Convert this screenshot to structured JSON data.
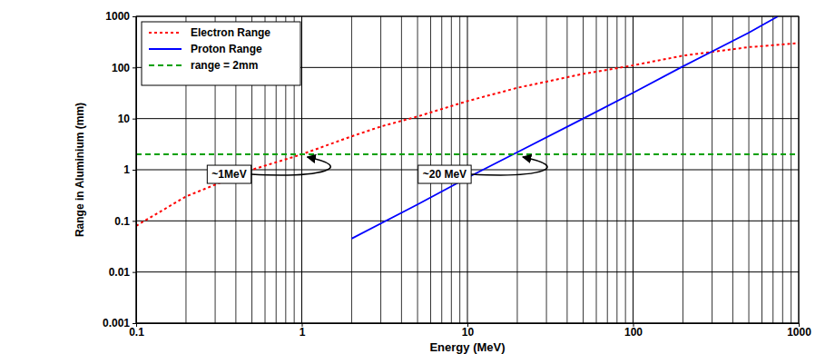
{
  "chart_data": {
    "type": "line",
    "log": true,
    "grid": true,
    "legend": "top-left",
    "x_label": "Energy (MeV)",
    "y_label": "Range in Aluminium (mm)",
    "xlim": [
      0.1,
      1000
    ],
    "xticks": [
      0.1,
      1,
      10,
      100,
      1000
    ],
    "ylim": [
      0.001,
      1000
    ],
    "yticks": [
      0.001,
      0.01,
      0.1,
      1,
      10,
      100,
      1000
    ],
    "series": [
      {
        "name": "Electron Range",
        "color": "#ff0000",
        "line_style": "dotted",
        "x": [
          0.1,
          0.2,
          0.5,
          1,
          2,
          3,
          5,
          10,
          20,
          50,
          100,
          200,
          500,
          1000
        ],
        "values": [
          0.08,
          0.3,
          1,
          2,
          4.5,
          7,
          11,
          22,
          40,
          75,
          110,
          170,
          250,
          300
        ]
      },
      {
        "name": "Proton Range",
        "color": "#0000ff",
        "line_style": "solid",
        "x": [
          2,
          5,
          10,
          20,
          50,
          100,
          200,
          500,
          750
        ],
        "values": [
          0.045,
          0.21,
          0.7,
          2.2,
          10,
          32,
          105,
          480,
          1000
        ]
      },
      {
        "name": "range = 2mm",
        "color": "#00a000",
        "line_style": "dashed",
        "x": [
          0.1,
          1000
        ],
        "values": [
          2,
          2
        ]
      }
    ],
    "annotations": [
      {
        "text": "~1MeV",
        "x": 1,
        "y": 2
      },
      {
        "text": "~20 MeV",
        "x": 20,
        "y": 2
      }
    ]
  }
}
